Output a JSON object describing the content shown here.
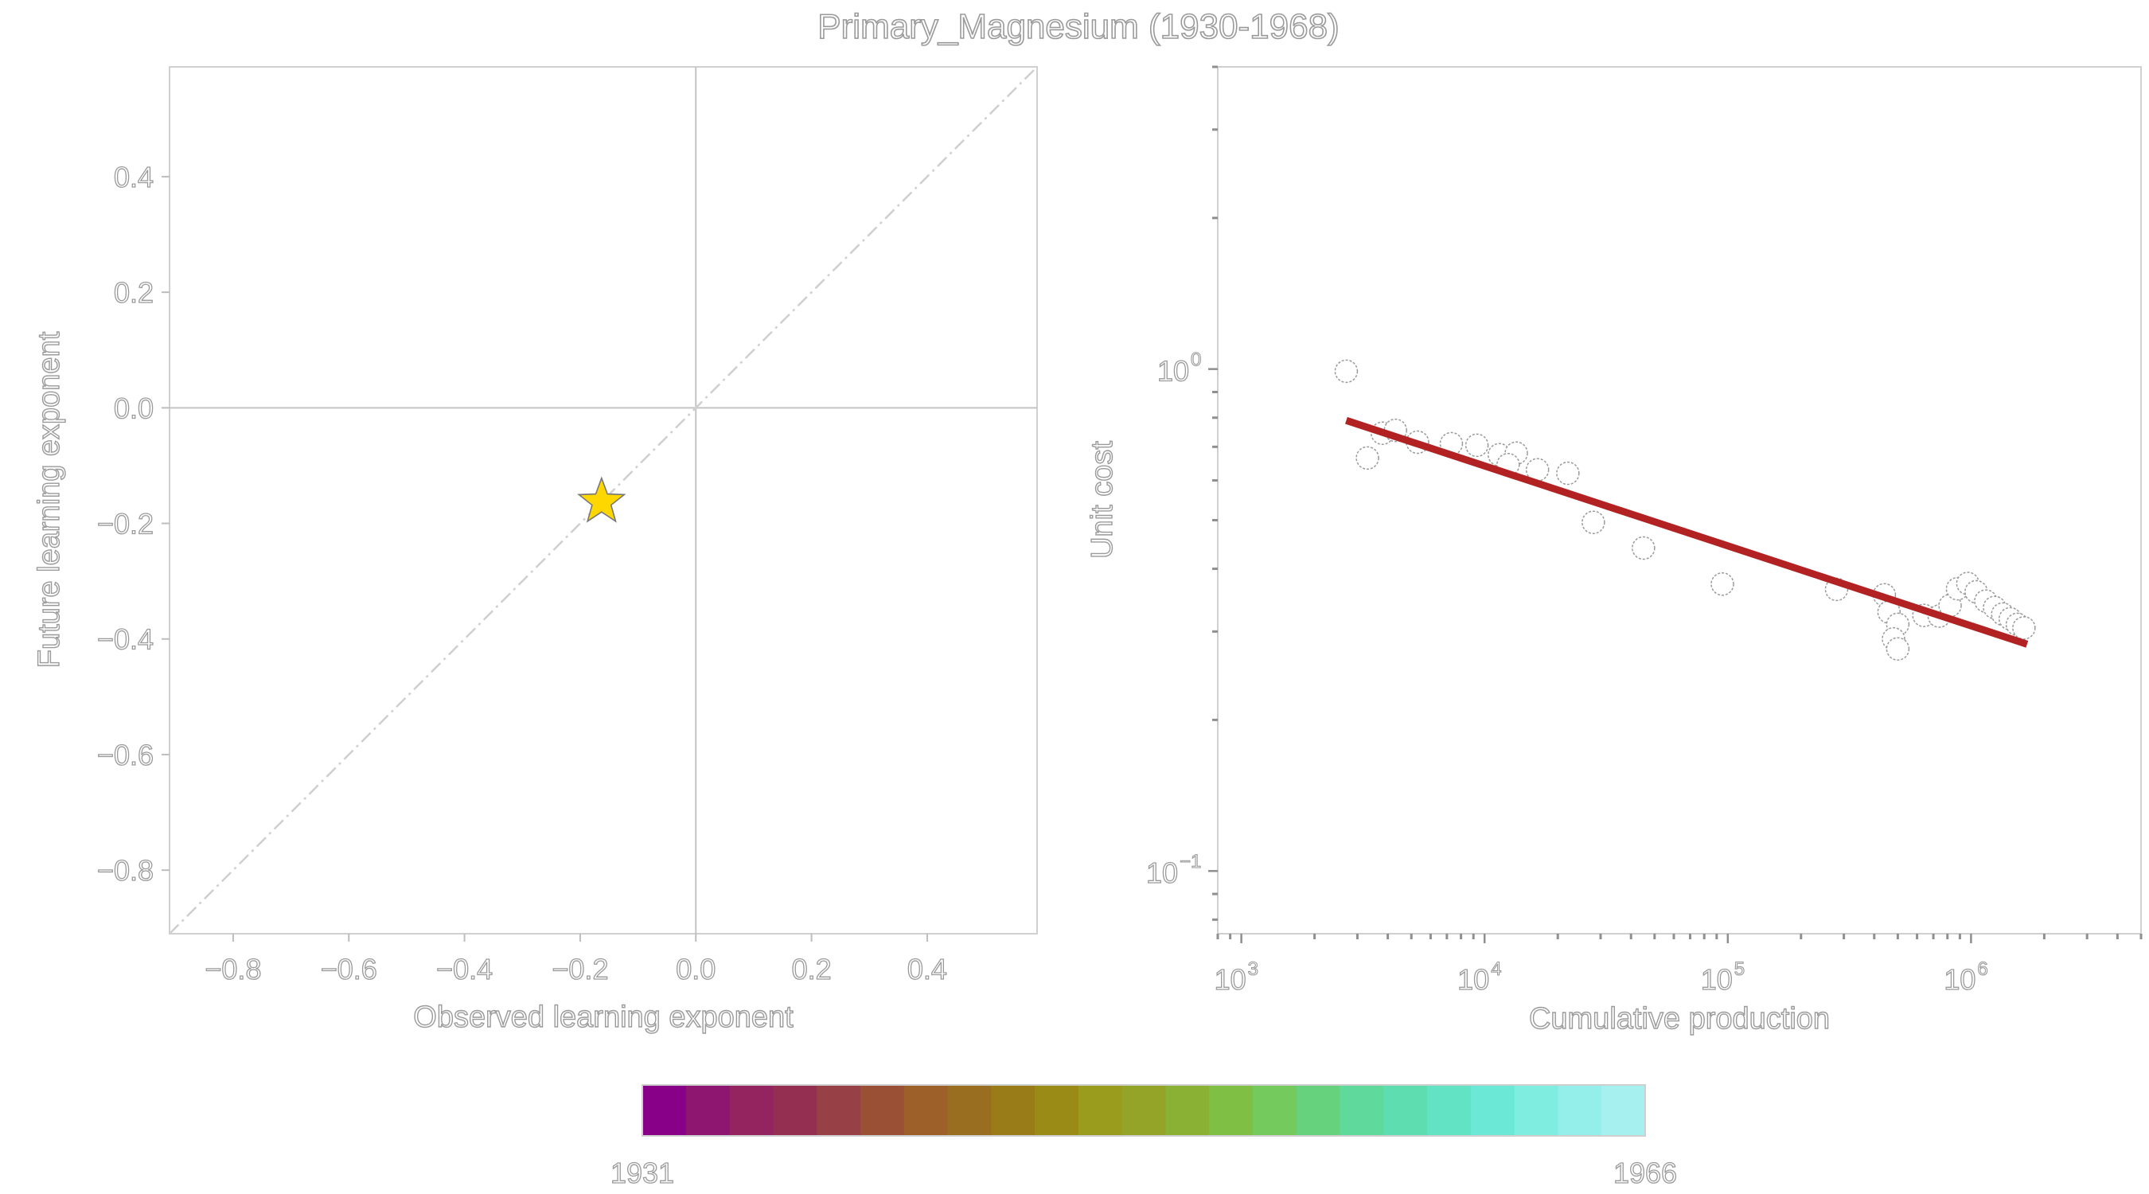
{
  "title": "Primary_Magnesium (1930-1968)",
  "colors": {
    "star": "#FFD700",
    "fit_line": "#B22222",
    "colormap": [
      "#880088",
      "#8E1570",
      "#932460",
      "#952F52",
      "#974045",
      "#9A5035",
      "#9C6028",
      "#9A6E20",
      "#997C18",
      "#9A8A16",
      "#999C1C",
      "#93A428",
      "#8AB134",
      "#7FC044",
      "#74CA5C",
      "#66D27E",
      "#5FD99C",
      "#5EDDB0",
      "#62E3C4",
      "#6CE9D6",
      "#7FEDE0",
      "#94EFEB",
      "#A6F0F0"
    ]
  },
  "chart_data": [
    {
      "type": "scatter",
      "xlabel": "Observed learning exponent",
      "ylabel": "Future learning exponent",
      "xlim": [
        -0.91,
        0.59
      ],
      "ylim": [
        -0.91,
        0.59
      ],
      "xticks": [
        -0.8,
        -0.6,
        -0.4,
        -0.2,
        0.0,
        0.2,
        0.4
      ],
      "yticks": [
        -0.8,
        -0.6,
        -0.4,
        -0.2,
        0.0,
        0.2,
        0.4
      ],
      "xtick_labels": [
        "−0.8",
        "−0.6",
        "−0.4",
        "−0.2",
        "0.0",
        "0.2",
        "0.4"
      ],
      "ytick_labels": [
        "−0.8",
        "−0.6",
        "−0.4",
        "−0.2",
        "0.0",
        "0.2",
        "0.4"
      ],
      "reference_lines": {
        "horizontal": 0,
        "vertical": 0,
        "diagonal": "y = x"
      },
      "points": [
        {
          "x": -0.163,
          "y": -0.163,
          "marker": "star"
        }
      ]
    },
    {
      "type": "scatter",
      "xlabel": "Cumulative production",
      "ylabel": "Unit cost",
      "x_scale": "log",
      "y_scale": "log",
      "xlim": [
        800,
        5000000
      ],
      "ylim": [
        0.075,
        4.0
      ],
      "xticks": [
        1000,
        10000,
        100000,
        1000000
      ],
      "xtick_labels": [
        {
          "base": "10",
          "exp": "3"
        },
        {
          "base": "10",
          "exp": "4"
        },
        {
          "base": "10",
          "exp": "5"
        },
        {
          "base": "10",
          "exp": "6"
        }
      ],
      "yticks": [
        0.1,
        1.0
      ],
      "ytick_labels": [
        {
          "base": "10",
          "exp": "−1"
        },
        {
          "base": "10",
          "exp": "0"
        }
      ],
      "fit_line": {
        "x": [
          2700,
          1700000
        ],
        "y": [
          0.79,
          0.283
        ]
      },
      "points": [
        {
          "x": 2700,
          "y": 0.99
        },
        {
          "x": 3300,
          "y": 0.665
        },
        {
          "x": 3800,
          "y": 0.745
        },
        {
          "x": 4300,
          "y": 0.755
        },
        {
          "x": 5300,
          "y": 0.715
        },
        {
          "x": 7300,
          "y": 0.71
        },
        {
          "x": 9300,
          "y": 0.705
        },
        {
          "x": 11500,
          "y": 0.675
        },
        {
          "x": 13500,
          "y": 0.68
        },
        {
          "x": 12500,
          "y": 0.645
        },
        {
          "x": 16500,
          "y": 0.63
        },
        {
          "x": 22000,
          "y": 0.62
        },
        {
          "x": 28000,
          "y": 0.495
        },
        {
          "x": 45000,
          "y": 0.44
        },
        {
          "x": 95000,
          "y": 0.373
        },
        {
          "x": 280000,
          "y": 0.364
        },
        {
          "x": 440000,
          "y": 0.355
        },
        {
          "x": 460000,
          "y": 0.328
        },
        {
          "x": 500000,
          "y": 0.31
        },
        {
          "x": 480000,
          "y": 0.29
        },
        {
          "x": 500000,
          "y": 0.277
        },
        {
          "x": 640000,
          "y": 0.323
        },
        {
          "x": 740000,
          "y": 0.322
        },
        {
          "x": 820000,
          "y": 0.338
        },
        {
          "x": 880000,
          "y": 0.365
        },
        {
          "x": 970000,
          "y": 0.374
        },
        {
          "x": 1050000,
          "y": 0.36
        },
        {
          "x": 1150000,
          "y": 0.345
        },
        {
          "x": 1250000,
          "y": 0.335
        },
        {
          "x": 1350000,
          "y": 0.325
        },
        {
          "x": 1450000,
          "y": 0.318
        },
        {
          "x": 1550000,
          "y": 0.31
        },
        {
          "x": 1650000,
          "y": 0.305
        }
      ]
    }
  ],
  "colorbar": {
    "min_label": "1931",
    "max_label": "1966"
  }
}
